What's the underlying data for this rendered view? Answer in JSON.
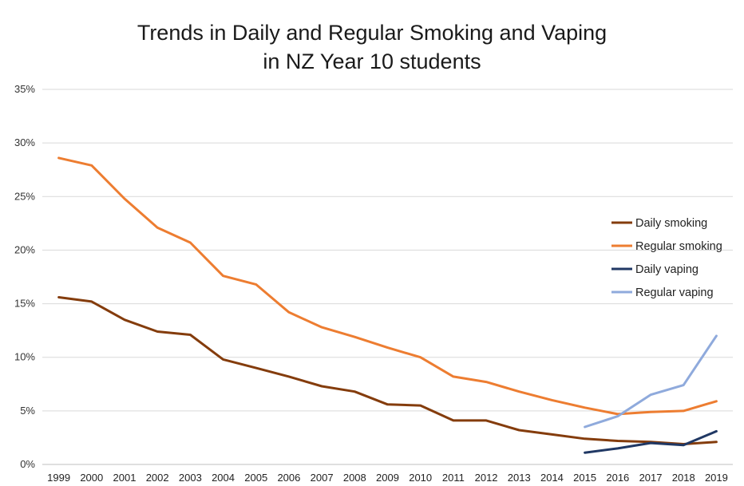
{
  "chart_data": {
    "type": "line",
    "title": "Trends in Daily and Regular Smoking and Vaping",
    "subtitle": "in NZ Year 10 students",
    "xlabel": "",
    "ylabel": "",
    "ylim": [
      0,
      35
    ],
    "y_ticks": [
      0,
      5,
      10,
      15,
      20,
      25,
      30,
      35
    ],
    "y_tick_labels": [
      "0%",
      "5%",
      "10%",
      "15%",
      "20%",
      "25%",
      "30%",
      "35%"
    ],
    "categories": [
      "1999",
      "2000",
      "2001",
      "2002",
      "2003",
      "2004",
      "2005",
      "2006",
      "2007",
      "2008",
      "2009",
      "2010",
      "2011",
      "2012",
      "2013",
      "2014",
      "2015",
      "2016",
      "2017",
      "2018",
      "2019"
    ],
    "grid": true,
    "legend_position": "right",
    "series": [
      {
        "name": "Daily smoking",
        "color": "#843c0c",
        "values": [
          15.6,
          15.2,
          13.5,
          12.4,
          12.1,
          9.8,
          9.0,
          8.2,
          7.3,
          6.8,
          5.6,
          5.5,
          4.1,
          4.1,
          3.2,
          2.8,
          2.4,
          2.2,
          2.1,
          1.9,
          2.1
        ]
      },
      {
        "name": "Regular smoking",
        "color": "#ed7d31",
        "values": [
          28.6,
          27.9,
          24.8,
          22.1,
          20.7,
          17.6,
          16.8,
          14.2,
          12.8,
          11.9,
          10.9,
          10.0,
          8.2,
          7.7,
          6.8,
          6.0,
          5.3,
          4.7,
          4.9,
          5.0,
          5.9
        ]
      },
      {
        "name": "Daily vaping",
        "color": "#203864",
        "values": [
          null,
          null,
          null,
          null,
          null,
          null,
          null,
          null,
          null,
          null,
          null,
          null,
          null,
          null,
          null,
          null,
          1.1,
          1.5,
          2.0,
          1.8,
          3.1
        ]
      },
      {
        "name": "Regular vaping",
        "color": "#8faadc",
        "values": [
          null,
          null,
          null,
          null,
          null,
          null,
          null,
          null,
          null,
          null,
          null,
          null,
          null,
          null,
          null,
          null,
          3.5,
          4.5,
          6.5,
          7.4,
          12.0
        ]
      }
    ]
  }
}
